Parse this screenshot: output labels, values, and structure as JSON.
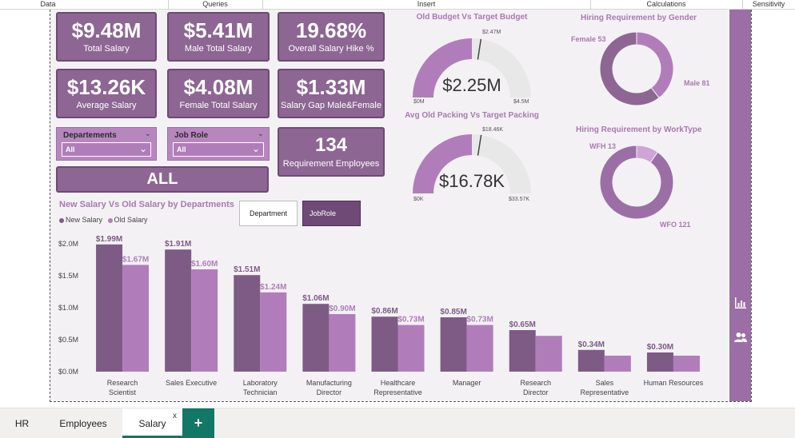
{
  "ribbon": {
    "groups": [
      "Data",
      "Queries",
      "Insert",
      "Calculations",
      "Sensitivity"
    ]
  },
  "kpis": [
    {
      "value": "$9.48M",
      "label": "Total Salary"
    },
    {
      "value": "$5.41M",
      "label": "Male Total Salary"
    },
    {
      "value": "19.68%",
      "label": "Overall Salary Hike %"
    },
    {
      "value": "$13.26K",
      "label": "Average Salary"
    },
    {
      "value": "$4.08M",
      "label": "Female Total Salary"
    },
    {
      "value": "$1.33M",
      "label": "Salary Gap Male&Female"
    },
    {
      "value": "134",
      "label": "Requirement Employees"
    }
  ],
  "slicers": {
    "departments": {
      "title": "Departements",
      "value": "All"
    },
    "jobrole": {
      "title": "Job Role",
      "value": "All"
    }
  },
  "all_button": "ALL",
  "gauges": [
    {
      "title": "Old Budget Vs Target Budget",
      "value": "$2.25M",
      "min": "$0M",
      "max": "$4.5M",
      "target": "$2.47M",
      "fill_fraction": 0.5,
      "target_fraction": 0.549
    },
    {
      "title": "Avg Old Packing Vs Target Packing",
      "value": "$16.78K",
      "min": "$0K",
      "max": "$33.57K",
      "target": "$18.46K",
      "fill_fraction": 0.5,
      "target_fraction": 0.55
    }
  ],
  "donuts": [
    {
      "title": "Hiring Requirement by Gender",
      "slices": [
        {
          "label": "Female 53",
          "value": 53
        },
        {
          "label": "Male 81",
          "value": 81
        }
      ]
    },
    {
      "title": "Hiring Requirement by WorkType",
      "slices": [
        {
          "label": "WFH 13",
          "value": 13
        },
        {
          "label": "WFO 121",
          "value": 121
        }
      ]
    }
  ],
  "toggle": {
    "department": "Department",
    "jobrole": "JobRole"
  },
  "colors": {
    "new_salary": "#7d5b85",
    "old_salary": "#b07dba",
    "accent": "#a979b1",
    "card": "#8d6693",
    "tab_active": "#117865"
  },
  "chart_data": {
    "type": "bar",
    "title": "New Salary Vs Old Salary by Departments",
    "categories": [
      "Research Scientist",
      "Sales Executive",
      "Laboratory Technician",
      "Manufacturing Director",
      "Healthcare Representative",
      "Manager",
      "Research Director",
      "Sales Representative",
      "Human Resources"
    ],
    "series": [
      {
        "name": "New Salary",
        "values": [
          1.99,
          1.91,
          1.51,
          1.06,
          0.86,
          0.85,
          0.65,
          0.34,
          0.3
        ],
        "labels": [
          "$1.99M",
          "$1.91M",
          "$1.51M",
          "$1.06M",
          "$0.86M",
          "$0.85M",
          "$0.65M",
          "$0.34M",
          "$0.30M"
        ]
      },
      {
        "name": "Old Salary",
        "values": [
          1.67,
          1.6,
          1.24,
          0.9,
          0.73,
          0.73,
          0.56,
          0.25,
          0.25
        ],
        "labels": [
          "$1.67M",
          "$1.60M",
          "$1.24M",
          "$0.90M",
          "$0.73M",
          "$0.73M",
          "",
          "",
          ""
        ]
      }
    ],
    "yticks": [
      "$0.0M",
      "$0.5M",
      "$1.0M",
      "$1.5M",
      "$2.0M"
    ],
    "ylim": [
      0,
      2.0
    ],
    "grid": false,
    "legend": "top-left"
  },
  "tabs": [
    {
      "label": "HR"
    },
    {
      "label": "Employees"
    },
    {
      "label": "Salary",
      "active": true
    }
  ],
  "tab_close": "x",
  "add_tab": "+"
}
